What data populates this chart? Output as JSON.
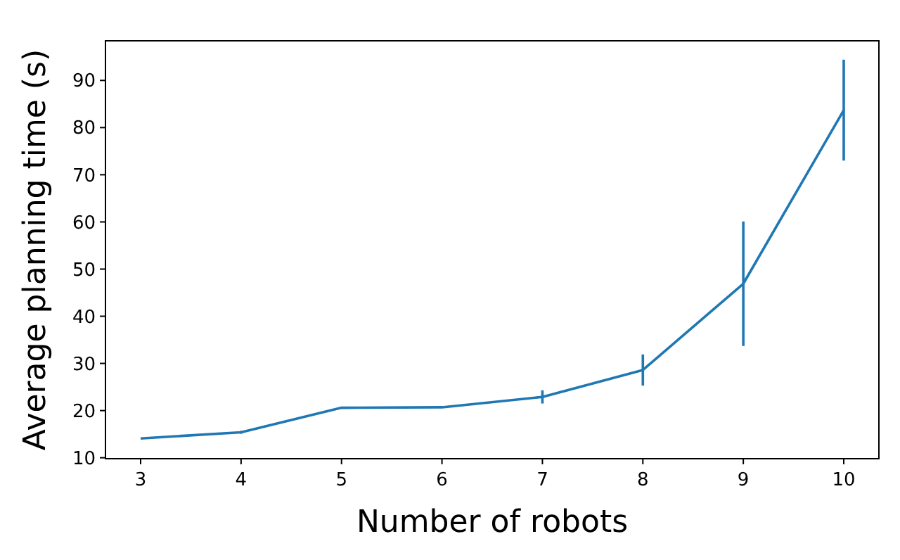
{
  "chart_data": {
    "type": "line",
    "xlabel": "Number of robots",
    "ylabel": "Average planning time (s)",
    "x": [
      3,
      4,
      5,
      6,
      7,
      8,
      9,
      10
    ],
    "series": [
      {
        "color": "#1f77b4",
        "values": [
          14.1,
          15.4,
          20.6,
          20.7,
          22.9,
          28.6,
          46.9,
          83.7
        ],
        "errors": [
          null,
          0.3,
          null,
          null,
          1.4,
          3.3,
          13.2,
          10.7
        ]
      }
    ],
    "xlim": [
      2.65,
      10.35
    ],
    "xticks": [
      3,
      4,
      5,
      6,
      7,
      8,
      9,
      10
    ],
    "ylim": [
      9.8,
      98.4
    ],
    "yticks": [
      10,
      20,
      30,
      40,
      50,
      60,
      70,
      80,
      90
    ],
    "marker": "none",
    "line_style": "solid"
  }
}
